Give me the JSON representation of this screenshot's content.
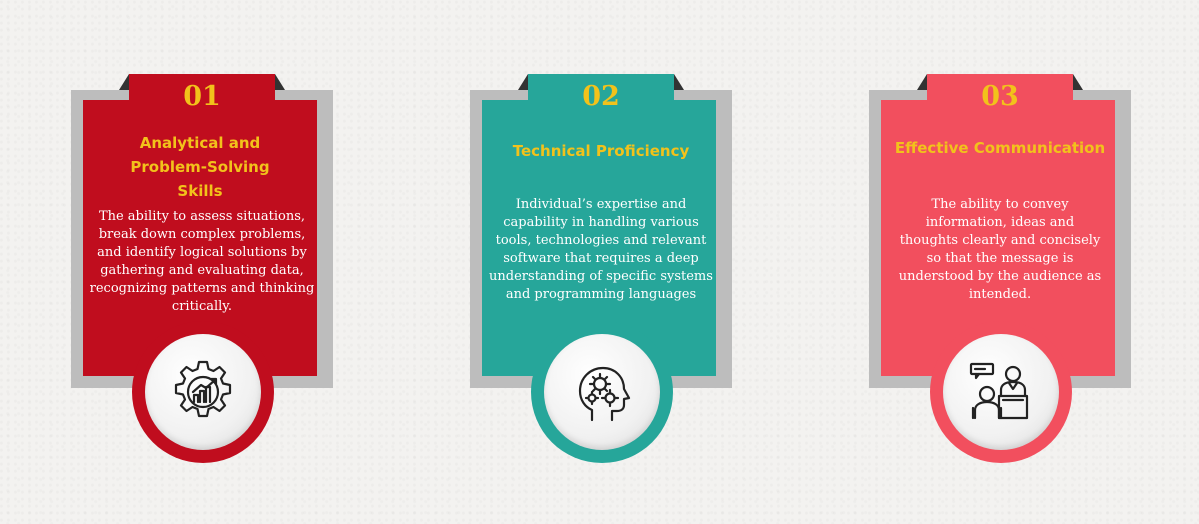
{
  "cards": [
    {
      "number": "01",
      "title": "Analytical and Problem-Solving Skills",
      "title_lines": [
        "Analytical and",
        "Problem-Solving",
        "Skills"
      ],
      "description": "The ability to assess situations, break down complex problems, and identify logical solutions by gathering and evaluating data, recognizing patterns and thinking critically.",
      "icon": "gear-growth-chart-icon",
      "color": "#c00d1e",
      "tab_color": "#c00d1e"
    },
    {
      "number": "02",
      "title": "Technical Proficiency",
      "title_lines": [
        "Technical Proficiency"
      ],
      "description": "Individual’s expertise and capability in handling various tools, technologies and relevant software that requires a deep understanding of specific systems and programming languages",
      "icon": "head-gears-icon",
      "color": "#26a69a",
      "tab_color": "#26a69a"
    },
    {
      "number": "03",
      "title": "Effective Communication",
      "title_lines": [
        "Effective Communication"
      ],
      "description": "The ability to convey information, ideas and thoughts clearly and concisely so that the message is understood by the audience as intended.",
      "icon": "speaker-audience-icon",
      "color": "#f24f5e",
      "tab_color": "#f24f5e"
    }
  ]
}
